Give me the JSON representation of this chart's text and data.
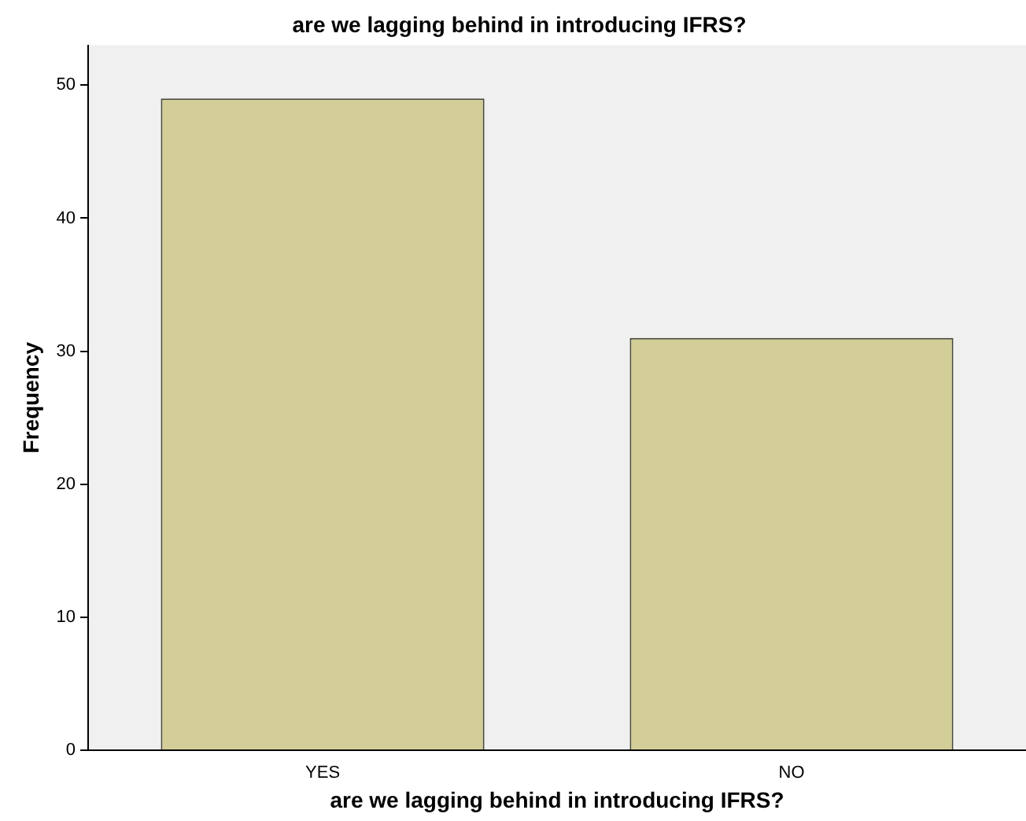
{
  "chart_data": {
    "type": "bar",
    "title": "are we lagging behind in introducing IFRS?",
    "xlabel": "are we lagging behind in introducing IFRS?",
    "ylabel": "Frequency",
    "categories": [
      "YES",
      "NO"
    ],
    "values": [
      49,
      31
    ],
    "color": "#d3ce97",
    "ylim": [
      0,
      53
    ],
    "yticks": [
      0,
      10,
      20,
      30,
      40,
      50
    ],
    "grid": false,
    "legend": false
  }
}
